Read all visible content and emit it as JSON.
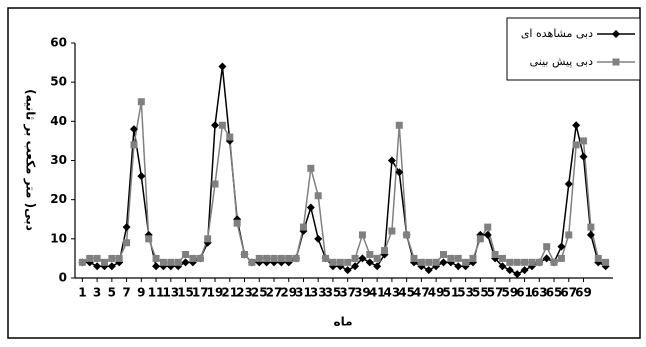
{
  "chart_data": {
    "type": "line",
    "xlabel": "ماه",
    "ylabel": "دبی( متر مکعب بر ثانیه)",
    "x": [
      1,
      2,
      3,
      4,
      5,
      6,
      7,
      8,
      9,
      10,
      11,
      12,
      13,
      14,
      15,
      16,
      17,
      18,
      19,
      20,
      21,
      22,
      23,
      24,
      25,
      26,
      27,
      28,
      29,
      30,
      31,
      32,
      33,
      34,
      35,
      36,
      37,
      38,
      39,
      40,
      41,
      42,
      43,
      44,
      45,
      46,
      47,
      48,
      49,
      50,
      51,
      52,
      53,
      54,
      55,
      56,
      57,
      58,
      59,
      60,
      61,
      62,
      63,
      64,
      65,
      66,
      67,
      68,
      69,
      70,
      71,
      72
    ],
    "series": [
      {
        "name": "دبی مشاهده ای",
        "color": "#000000",
        "marker": "diamond",
        "values": [
          4,
          4,
          3,
          3,
          3,
          4,
          13,
          38,
          26,
          11,
          3,
          3,
          3,
          3,
          4,
          4,
          5,
          9,
          39,
          54,
          35,
          15,
          6,
          4,
          4,
          4,
          4,
          4,
          4,
          5,
          12,
          18,
          10,
          5,
          3,
          3,
          2,
          3,
          5,
          4,
          3,
          6,
          30,
          27,
          11,
          4,
          3,
          2,
          3,
          4,
          4,
          3,
          3,
          4,
          11,
          11,
          5,
          3,
          2,
          1,
          2,
          3,
          4,
          5,
          4,
          8,
          24,
          39,
          31,
          11,
          4,
          3
        ]
      },
      {
        "name": "دبی پیش بینی",
        "color": "#808080",
        "marker": "square",
        "values": [
          4,
          5,
          5,
          4,
          5,
          5,
          9,
          34,
          45,
          10,
          5,
          4,
          4,
          4,
          6,
          5,
          5,
          10,
          24,
          39,
          36,
          14,
          6,
          4,
          5,
          5,
          5,
          5,
          5,
          5,
          13,
          28,
          21,
          5,
          4,
          4,
          4,
          5,
          11,
          6,
          5,
          7,
          12,
          39,
          11,
          5,
          4,
          4,
          4,
          6,
          5,
          5,
          4,
          5,
          10,
          13,
          6,
          5,
          4,
          4,
          4,
          4,
          4,
          8,
          4,
          5,
          11,
          34,
          35,
          13,
          5,
          4
        ]
      }
    ],
    "xlim": [
      0,
      73
    ],
    "xticks": [
      1,
      3,
      5,
      7,
      9,
      11,
      13,
      15,
      17,
      19,
      21,
      23,
      25,
      27,
      29,
      31,
      33,
      35,
      37,
      39,
      41,
      43,
      45,
      47,
      49,
      51,
      53,
      55,
      57,
      59,
      61,
      63,
      65,
      67,
      69
    ],
    "ylim": [
      0,
      60
    ],
    "yticks": [
      0,
      10,
      20,
      30,
      40,
      50,
      60
    ],
    "legend": "upper right"
  }
}
